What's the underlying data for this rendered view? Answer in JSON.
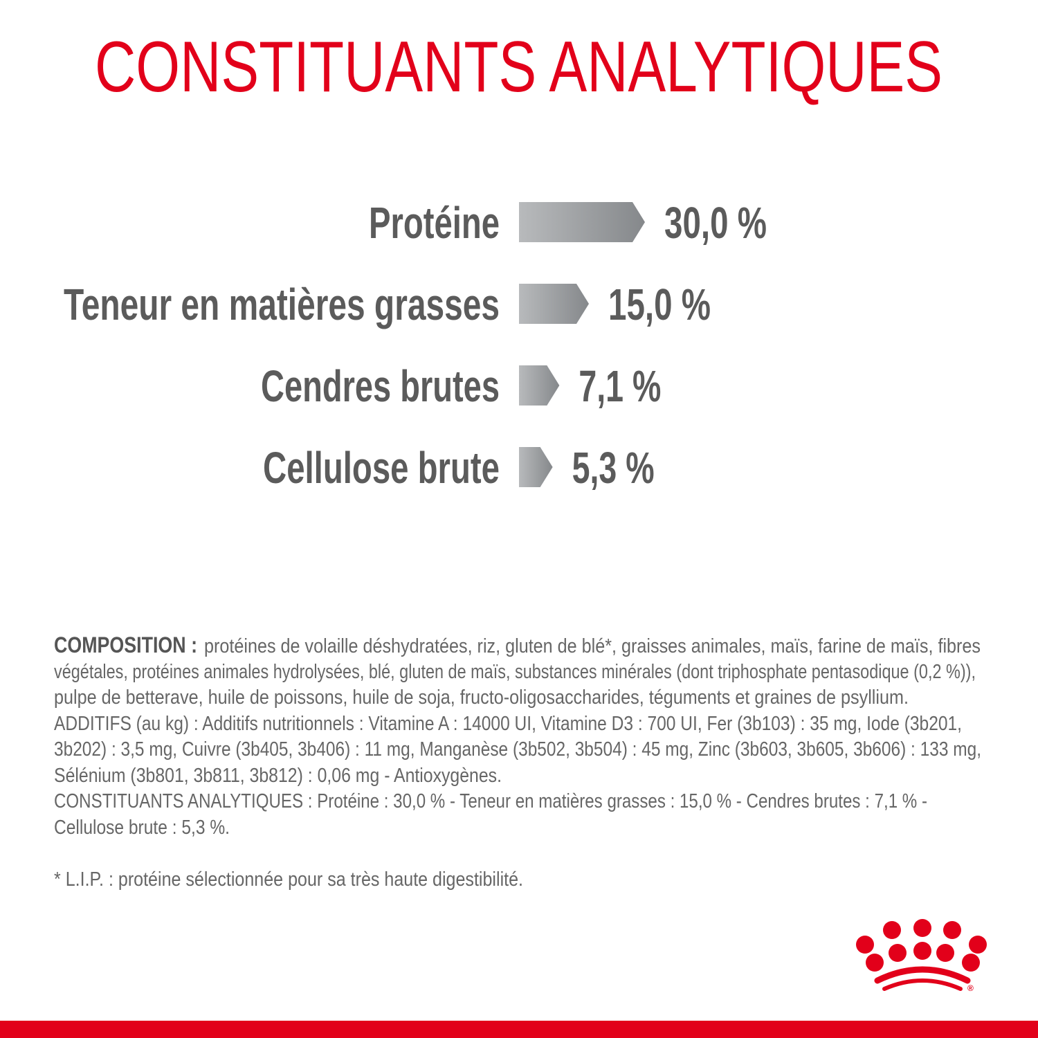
{
  "title": "CONSTITUANTS ANALYTIQUES",
  "colors": {
    "brand_red": "#e2001a",
    "text_gray": "#5b5b5b",
    "bar_gray_start": "#b5b7b9",
    "bar_gray_end": "#86898c"
  },
  "chart_data": {
    "type": "bar",
    "orientation": "horizontal",
    "categories": [
      "Protéine",
      "Teneur en matières grasses",
      "Cendres brutes",
      "Cellulose brute"
    ],
    "values": [
      30.0,
      15.0,
      7.1,
      5.3
    ],
    "value_labels": [
      "30,0 %",
      "15,0 %",
      "7,1 %",
      "5,3 %"
    ],
    "unit": "%"
  },
  "composition": {
    "heading": "COMPOSITION :",
    "lines": [
      "protéines de volaille déshydratées, riz, gluten de blé*, graisses animales, maïs, farine de maïs, fibres",
      "végétales, protéines animales hydrolysées, blé, gluten de maïs, substances minérales (dont triphosphate pentasodique (0,2 %)),",
      "pulpe de betterave, huile de poissons, huile de soja, fructo-oligosaccharides, téguments et graines de psyllium.",
      "ADDITIFS (au kg) : Additifs nutritionnels : Vitamine A : 14000 UI, Vitamine D3 : 700 UI, Fer (3b103) : 35 mg, Iode (3b201,",
      "3b202) : 3,5 mg, Cuivre (3b405, 3b406) : 11 mg, Manganèse (3b502, 3b504) : 45 mg, Zinc (3b603, 3b605, 3b606) : 133 mg,",
      "Sélénium (3b801, 3b811, 3b812) : 0,06 mg - Antioxygènes.",
      "CONSTITUANTS ANALYTIQUES : Protéine : 30,0 % - Teneur en matières grasses : 15,0 % - Cendres brutes : 7,1 % -",
      "Cellulose brute : 5,3 %."
    ],
    "footnote": "* L.I.P. : protéine sélectionnée pour sa très haute digestibilité."
  },
  "logo": {
    "name": "royal-canin-crown-logo",
    "mark": "®"
  }
}
